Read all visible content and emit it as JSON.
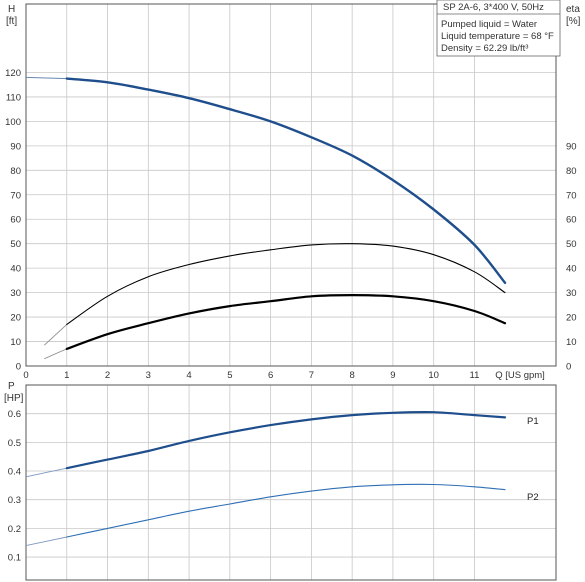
{
  "chart_data": [
    {
      "type": "line",
      "panel": "head-efficiency",
      "title_box": {
        "model": "SP 2A-6, 3*400 V, 50Hz",
        "lines": [
          "Pumped liquid = Water",
          "Liquid temperature = 68 °F",
          "Density = 62.29 lb/ft³"
        ]
      },
      "xlabel": "Q [US gpm]",
      "x_ticks": [
        0,
        1,
        2,
        3,
        4,
        5,
        6,
        7,
        8,
        9,
        10,
        11
      ],
      "xlim": [
        0,
        13
      ],
      "y_left": {
        "label_top": "H",
        "label_unit": "[ft]",
        "ticks": [
          0,
          10,
          20,
          30,
          40,
          50,
          60,
          70,
          80,
          90,
          100,
          110,
          120
        ],
        "ylim": [
          0,
          148
        ]
      },
      "y_right": {
        "label_top": "eta",
        "label_unit": "[%]",
        "ticks": [
          0,
          10,
          20,
          30,
          40,
          50,
          60,
          70,
          80,
          90
        ],
        "ylim": [
          0,
          148
        ]
      },
      "grid": true,
      "colors": {
        "head": "#1f4e8c",
        "eta": "#000000",
        "grid": "#c8c8c8"
      },
      "series": [
        {
          "key": "head",
          "axis": "left",
          "x": [
            0,
            1,
            2,
            3,
            4,
            5,
            6,
            7,
            8,
            9,
            10,
            11,
            11.75
          ],
          "y": [
            118,
            117.5,
            116,
            113,
            109.5,
            105,
            100,
            93.5,
            86,
            76,
            64,
            49.5,
            34
          ]
        },
        {
          "key": "eta-upper",
          "axis": "right",
          "x": [
            0.45,
            1,
            2,
            3,
            4,
            5,
            6,
            7,
            8,
            9,
            10,
            11,
            11.75
          ],
          "y": [
            8.5,
            17,
            28.5,
            36.5,
            41.5,
            45,
            47.5,
            49.5,
            50,
            49,
            45.5,
            38.5,
            30
          ]
        },
        {
          "key": "eta-lower",
          "axis": "right",
          "x": [
            0.45,
            1,
            2,
            3,
            4,
            5,
            6,
            7,
            8,
            9,
            10,
            11,
            11.75
          ],
          "y": [
            3,
            7,
            13,
            17.5,
            21.5,
            24.5,
            26.5,
            28.5,
            29,
            28.5,
            26.5,
            22.5,
            17.5
          ]
        }
      ]
    },
    {
      "type": "line",
      "panel": "power",
      "y_left": {
        "label_top": "P",
        "label_unit": "[HP]",
        "ticks": [
          0.1,
          0.2,
          0.3,
          0.4,
          0.5,
          0.6
        ],
        "ylim": [
          0.02,
          0.7
        ]
      },
      "xlim": [
        0,
        13
      ],
      "grid": true,
      "colors": {
        "p1": "#1f4e8c",
        "p2": "#2f6fb5",
        "grid": "#c8c8c8"
      },
      "series": [
        {
          "name": "P1",
          "key": "p1",
          "x": [
            0,
            1,
            2,
            3,
            4,
            5,
            6,
            7,
            8,
            9,
            10,
            11,
            11.75
          ],
          "y": [
            0.38,
            0.41,
            0.44,
            0.47,
            0.505,
            0.535,
            0.56,
            0.58,
            0.595,
            0.603,
            0.605,
            0.595,
            0.587
          ]
        },
        {
          "name": "P2",
          "key": "p2",
          "x": [
            0,
            1,
            2,
            3,
            4,
            5,
            6,
            7,
            8,
            9,
            10,
            11,
            11.75
          ],
          "y": [
            0.14,
            0.17,
            0.2,
            0.23,
            0.26,
            0.285,
            0.31,
            0.33,
            0.345,
            0.352,
            0.353,
            0.345,
            0.335
          ]
        }
      ]
    }
  ]
}
